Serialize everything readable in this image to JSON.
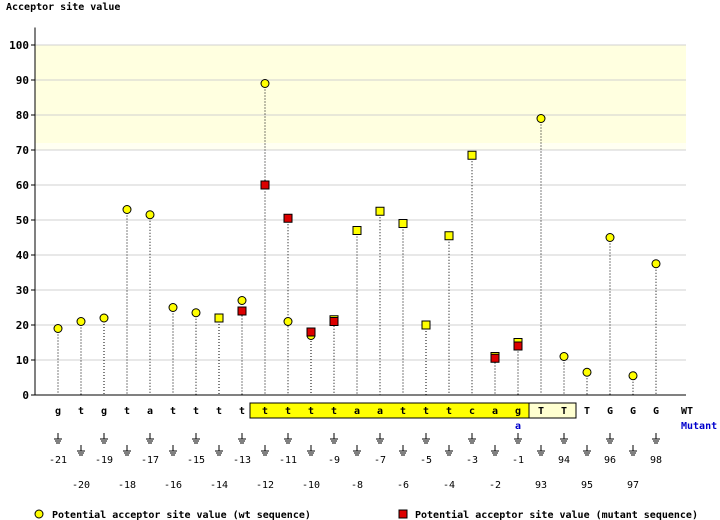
{
  "chart_data": {
    "type": "scatter",
    "ylabel": "Acceptor site value",
    "ylim": [
      0,
      105
    ],
    "yticks": [
      0,
      10,
      20,
      30,
      40,
      50,
      60,
      70,
      80,
      90,
      100
    ],
    "highlight_band": [
      70,
      100
    ],
    "wt_row_label": "WT",
    "mutant_row_label": "Mutant",
    "columns": [
      {
        "pos": "-21",
        "wt": "g"
      },
      {
        "pos": "-20",
        "wt": "t"
      },
      {
        "pos": "-19",
        "wt": "g"
      },
      {
        "pos": "-18",
        "wt": "t"
      },
      {
        "pos": "-17",
        "wt": "a"
      },
      {
        "pos": "-16",
        "wt": "t"
      },
      {
        "pos": "-15",
        "wt": "t"
      },
      {
        "pos": "-14",
        "wt": "t"
      },
      {
        "pos": "-13",
        "wt": "t"
      },
      {
        "pos": "-12",
        "wt": "t"
      },
      {
        "pos": "-11",
        "wt": "t"
      },
      {
        "pos": "-10",
        "wt": "t"
      },
      {
        "pos": "-9",
        "wt": "t"
      },
      {
        "pos": "-8",
        "wt": "a"
      },
      {
        "pos": "-7",
        "wt": "a"
      },
      {
        "pos": "-6",
        "wt": "t"
      },
      {
        "pos": "-5",
        "wt": "t"
      },
      {
        "pos": "-4",
        "wt": "t"
      },
      {
        "pos": "-3",
        "wt": "c"
      },
      {
        "pos": "-2",
        "wt": "a"
      },
      {
        "pos": "-1",
        "wt": "g",
        "mutant": "a"
      },
      {
        "pos": "93",
        "wt": "T"
      },
      {
        "pos": "94",
        "wt": "T"
      },
      {
        "pos": "95",
        "wt": "T"
      },
      {
        "pos": "96",
        "wt": "G"
      },
      {
        "pos": "97",
        "wt": "G"
      },
      {
        "pos": "98",
        "wt": "G"
      }
    ],
    "series": [
      {
        "name": "Potential acceptor site value (wt sequence)",
        "color": "#ffff00",
        "marker": "circle",
        "points": [
          {
            "i": 0,
            "y": 19
          },
          {
            "i": 1,
            "y": 21
          },
          {
            "i": 2,
            "y": 22
          },
          {
            "i": 3,
            "y": 53
          },
          {
            "i": 4,
            "y": 51.5
          },
          {
            "i": 5,
            "y": 25
          },
          {
            "i": 6,
            "y": 23.5
          },
          {
            "i": 8,
            "y": 27
          },
          {
            "i": 9,
            "y": 89
          },
          {
            "i": 10,
            "y": 21
          },
          {
            "i": 11,
            "y": 17
          },
          {
            "i": 21,
            "y": 79
          },
          {
            "i": 22,
            "y": 11
          },
          {
            "i": 23,
            "y": 6.5
          },
          {
            "i": 24,
            "y": 45
          },
          {
            "i": 25,
            "y": 5.5
          },
          {
            "i": 26,
            "y": 37.5
          }
        ]
      },
      {
        "name": "Potential acceptor site value (wt sequence)",
        "color": "#ffff00",
        "marker": "square",
        "legend": false,
        "points": [
          {
            "i": 7,
            "y": 22
          },
          {
            "i": 12,
            "y": 21.5
          },
          {
            "i": 13,
            "y": 47
          },
          {
            "i": 14,
            "y": 52.5
          },
          {
            "i": 15,
            "y": 49
          },
          {
            "i": 16,
            "y": 20
          },
          {
            "i": 17,
            "y": 45.5
          },
          {
            "i": 18,
            "y": 68.5
          },
          {
            "i": 19,
            "y": 11
          },
          {
            "i": 20,
            "y": 15
          }
        ]
      },
      {
        "name": "Potential acceptor site value (mutant sequence)",
        "color": "#dd0000",
        "marker": "square",
        "points": [
          {
            "i": 8,
            "y": 24
          },
          {
            "i": 9,
            "y": 60
          },
          {
            "i": 10,
            "y": 50.5
          },
          {
            "i": 11,
            "y": 18
          },
          {
            "i": 12,
            "y": 21
          },
          {
            "i": 19,
            "y": 10.5
          },
          {
            "i": 20,
            "y": 14
          }
        ]
      }
    ],
    "highlight_exon_range": [
      9,
      20
    ],
    "highlight_intron_range": [
      21,
      22
    ]
  },
  "legend": {
    "wt_label": "Potential acceptor site value (wt sequence)",
    "mutant_label": "Potential acceptor site value (mutant sequence)"
  }
}
